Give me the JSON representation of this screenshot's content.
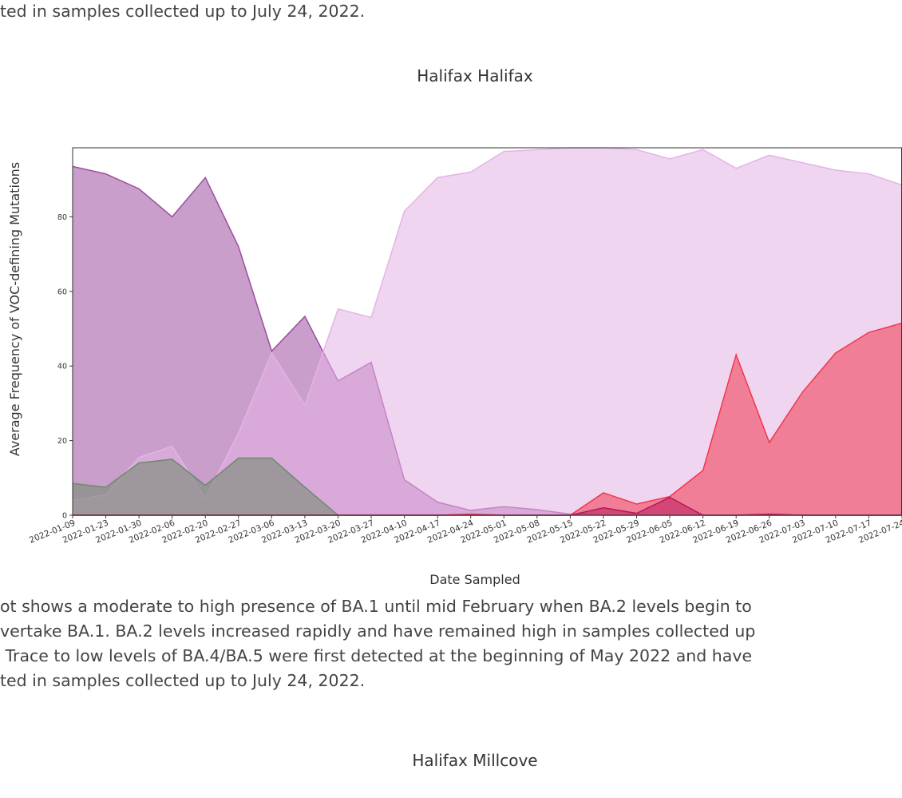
{
  "intro_text": "ted in samples collected up to July 24, 2022.",
  "chart_data": {
    "type": "area",
    "title": "Halifax Halifax",
    "xlabel": "Date Sampled",
    "ylabel": "Average Frequency of VOC-defining Mutations",
    "categories": [
      "2022-01-09",
      "2022-01-23",
      "2022-01-30",
      "2022-02-06",
      "2022-02-20",
      "2022-02-27",
      "2022-03-06",
      "2022-03-13",
      "2022-03-20",
      "2022-03-27",
      "2022-04-10",
      "2022-04-17",
      "2022-04-24",
      "2022-05-01",
      "2022-05-08",
      "2022-05-15",
      "2022-05-22",
      "2022-05-29",
      "2022-06-05",
      "2022-06-12",
      "2022-06-19",
      "2022-06-26",
      "2022-07-03",
      "2022-07-10",
      "2022-07-17",
      "2022-07-24"
    ],
    "series": [
      {
        "color": "#9c4f9f",
        "values": [
          93.5,
          91.5,
          87.5,
          80,
          90.5,
          72,
          44,
          53.3,
          36,
          41,
          9.5,
          3.5,
          1.3,
          2.3,
          1.5,
          0.3,
          0,
          0,
          0,
          0,
          0,
          0,
          0,
          0,
          0,
          0
        ]
      },
      {
        "color": "#e3b3e6",
        "values": [
          4,
          5.5,
          15.5,
          18.5,
          4.5,
          22,
          43.5,
          29.5,
          55.3,
          53,
          81.5,
          90.5,
          92,
          97.5,
          98,
          98.5,
          98.5,
          98,
          95.5,
          98,
          93,
          96.5,
          94.5,
          92.5,
          91.5,
          88.5
        ]
      },
      {
        "color": "#6f8a6d",
        "values": [
          8.5,
          7.5,
          14,
          15,
          8,
          15.3,
          15.3,
          7.5,
          0,
          0,
          0,
          0,
          0,
          0,
          0,
          0,
          0,
          0,
          0,
          0,
          0,
          0,
          0,
          0,
          0,
          0
        ]
      },
      {
        "color": "#f2374c",
        "values": [
          0,
          0,
          0,
          0,
          0,
          0,
          0,
          0,
          0,
          0,
          0,
          0,
          0.3,
          0,
          0,
          0,
          6,
          3,
          5,
          12,
          43,
          19.5,
          33,
          43.5,
          49,
          51.5
        ]
      },
      {
        "color": "#b8195a",
        "values": [
          0,
          0,
          0,
          0,
          0,
          0,
          0,
          0,
          0,
          0,
          0,
          0,
          0,
          0,
          0,
          0,
          2,
          0.5,
          4.8,
          0,
          0,
          0.3,
          0,
          0,
          0,
          0
        ]
      }
    ],
    "ylim": [
      0,
      98.5
    ],
    "yticks": [
      0,
      20,
      40,
      60,
      80
    ]
  },
  "paragraph": [
    "ot shows a moderate to high presence of BA.1 until mid February when BA.2 levels begin to",
    "vertake BA.1. BA.2 levels increased rapidly and have remained high in samples collected up",
    " Trace to low levels of BA.4/BA.5 were first detected at the beginning of May 2022 and have",
    "ted in samples collected up to July 24, 2022."
  ],
  "next_chart_title": "Halifax Millcove"
}
